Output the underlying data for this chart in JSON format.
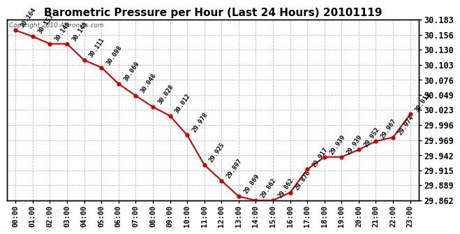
{
  "title": "Barometric Pressure per Hour (Last 24 Hours) 20101119",
  "copyright": "Copyright 2010 Artronics.com",
  "hours": [
    "00:00",
    "01:00",
    "02:00",
    "03:00",
    "04:00",
    "05:00",
    "06:00",
    "07:00",
    "08:00",
    "09:00",
    "10:00",
    "11:00",
    "12:00",
    "13:00",
    "14:00",
    "15:00",
    "16:00",
    "17:00",
    "18:00",
    "19:00",
    "20:00",
    "21:00",
    "22:00",
    "23:00"
  ],
  "values": [
    30.164,
    30.153,
    30.14,
    30.14,
    30.111,
    30.098,
    30.069,
    30.048,
    30.028,
    30.012,
    29.978,
    29.925,
    29.897,
    29.869,
    29.862,
    29.862,
    29.876,
    29.917,
    29.939,
    29.939,
    29.952,
    29.967,
    29.974,
    30.015
  ],
  "ylim_min": 29.862,
  "ylim_max": 30.183,
  "yticks": [
    29.862,
    29.889,
    29.915,
    29.942,
    29.969,
    29.996,
    30.023,
    30.049,
    30.076,
    30.103,
    30.13,
    30.156,
    30.183
  ],
  "line_color": "#cc0000",
  "marker_color": "#cc0000",
  "bg_color": "#ffffff",
  "grid_color": "#bbbbbb",
  "label_color": "#000000",
  "title_fontsize": 11,
  "tick_fontsize": 7.5,
  "annotation_fontsize": 6.5,
  "right_ytick_fontsize": 8.5,
  "annotation_rotation": 55
}
